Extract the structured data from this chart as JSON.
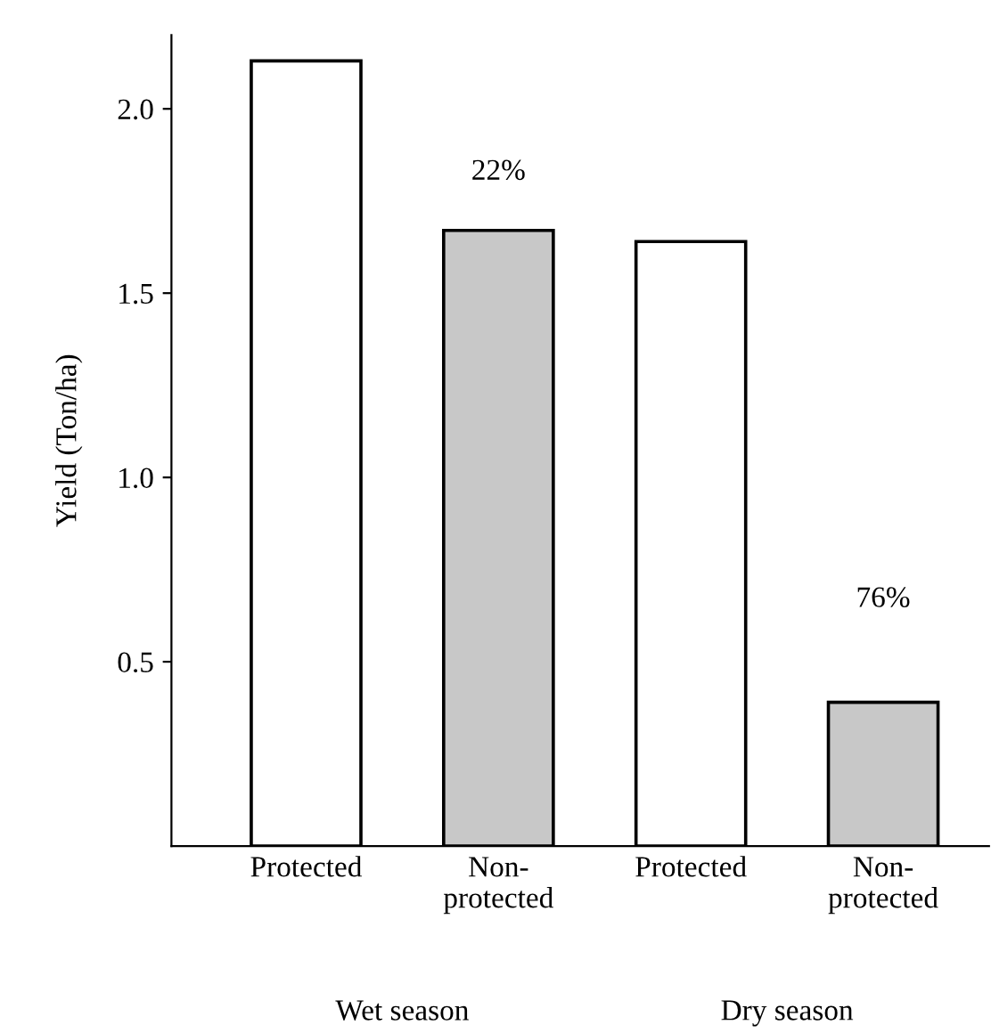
{
  "chart_data": {
    "type": "bar",
    "ylabel": "Yield (Ton/ha)",
    "categories": [
      "Protected",
      "Non-\nprotected",
      "Protected",
      "Non-\nprotected"
    ],
    "values": [
      2.13,
      1.67,
      1.64,
      0.39
    ],
    "colors": [
      "#ffffff",
      "#c8c8c8",
      "#ffffff",
      "#c8c8c8"
    ],
    "annotations": [
      "22%",
      "76%",
      "Wet season",
      "Dry season"
    ],
    "ylim": [
      0,
      2.2
    ],
    "yticks": [
      {
        "value": 0.5,
        "label": "0.5"
      },
      {
        "value": 1.0,
        "label": "1.0"
      },
      {
        "value": 1.5,
        "label": "1.5"
      },
      {
        "value": 2.0,
        "label": "2.0"
      }
    ],
    "grid": false,
    "legend": false
  }
}
